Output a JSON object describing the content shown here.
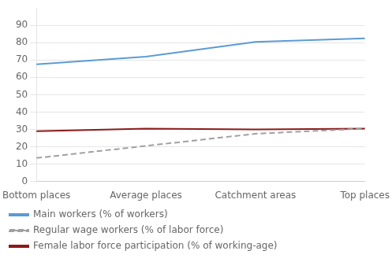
{
  "chart_data": {
    "type": "line",
    "categories": [
      "Bottom places",
      "Average places",
      "Catchment areas",
      "Top places"
    ],
    "series": [
      {
        "name": "Main workers (% of workers)",
        "color": "#5B9BD5",
        "values": [
          67.5,
          72.0,
          80.5,
          82.5
        ],
        "line_style": "solid"
      },
      {
        "name": "Regular wage workers (% of labor force)",
        "color": "#A0A0A0",
        "values": [
          13.5,
          20.5,
          27.5,
          30.5
        ],
        "line_style": "dashed"
      },
      {
        "name": "Female labor force participation (% of working-age)",
        "color": "#8B1A1A",
        "values": [
          29.0,
          30.5,
          30.0,
          30.5
        ],
        "line_style": "solid"
      }
    ],
    "ylim": [
      0,
      100
    ],
    "yticks": [
      0,
      10,
      20,
      30,
      40,
      50,
      60,
      70,
      80,
      90
    ],
    "grid": "y",
    "legend": "bottom"
  }
}
